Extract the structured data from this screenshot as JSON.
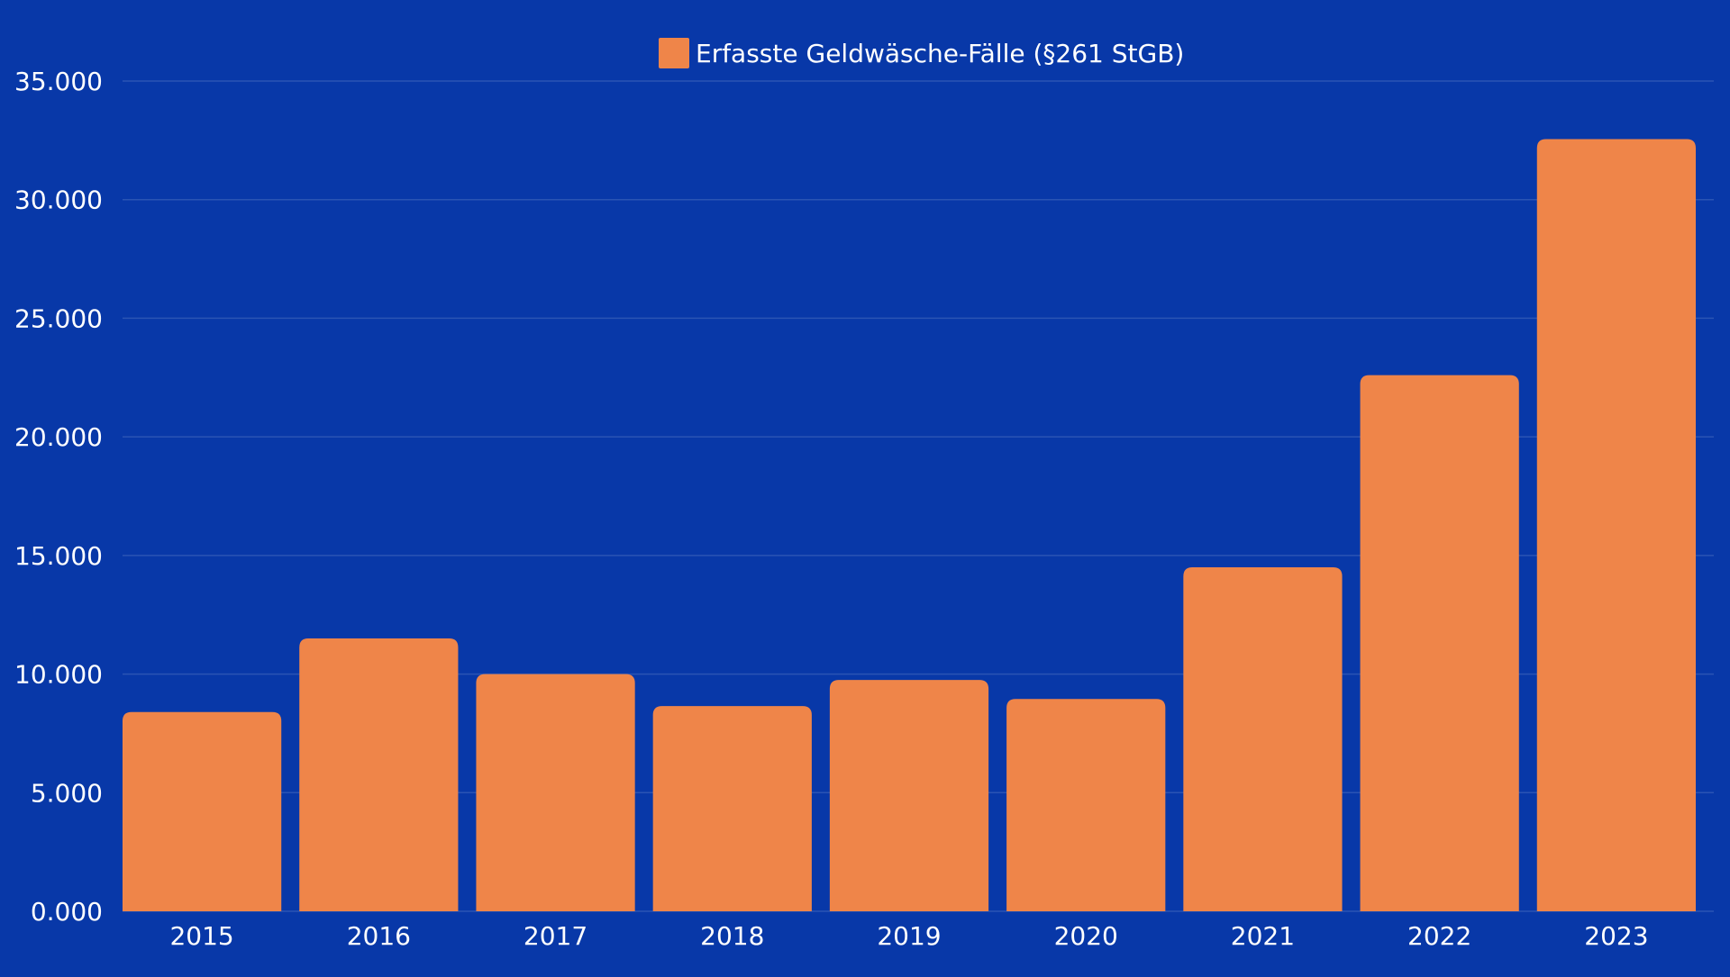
{
  "colors": {
    "background": "#0838a8",
    "bar": "#ef8549",
    "text": "#ffffff",
    "grid": "#3a5fc0"
  },
  "chart_data": {
    "type": "bar",
    "categories": [
      "2015",
      "2016",
      "2017",
      "2018",
      "2019",
      "2020",
      "2021",
      "2022",
      "2023"
    ],
    "series": [
      {
        "name": "Erfasste Geldwäsche-Fälle (§261 StGB)",
        "values": [
          8400,
          11500,
          10000,
          8650,
          9750,
          8950,
          14500,
          22600,
          32550
        ]
      }
    ],
    "title": "",
    "xlabel": "",
    "ylabel": "",
    "ylim": [
      0,
      35000
    ],
    "y_ticks": [
      0,
      5000,
      10000,
      15000,
      20000,
      25000,
      30000,
      35000
    ],
    "y_tick_labels": [
      "0.000",
      "5.000",
      "10.000",
      "15.000",
      "20.000",
      "25.000",
      "30.000",
      "35.000"
    ],
    "grid": true,
    "legend_position": "top-center"
  }
}
